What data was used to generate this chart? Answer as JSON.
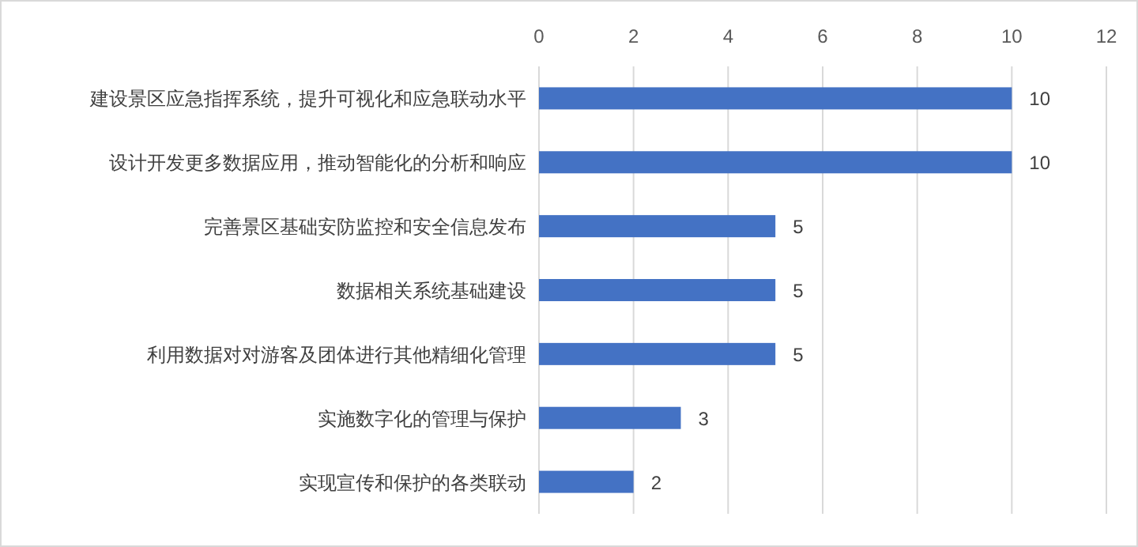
{
  "chart_data": {
    "type": "bar",
    "orientation": "horizontal",
    "categories": [
      "建设景区应急指挥系统，提升可视化和应急联动水平",
      "设计开发更多数据应用，推动智能化的分析和响应",
      "完善景区基础安防监控和安全信息发布",
      "数据相关系统基础建设",
      "利用数据对对游客及团体进行其他精细化管理",
      "实施数字化的管理与保护",
      "实现宣传和保护的各类联动"
    ],
    "values": [
      10,
      10,
      5,
      5,
      5,
      3,
      2
    ],
    "color": "#4472c4",
    "xlim": [
      0,
      12
    ],
    "xticks": [
      0,
      2,
      4,
      6,
      8,
      10,
      12
    ],
    "grid": "x",
    "data_labels": true
  }
}
